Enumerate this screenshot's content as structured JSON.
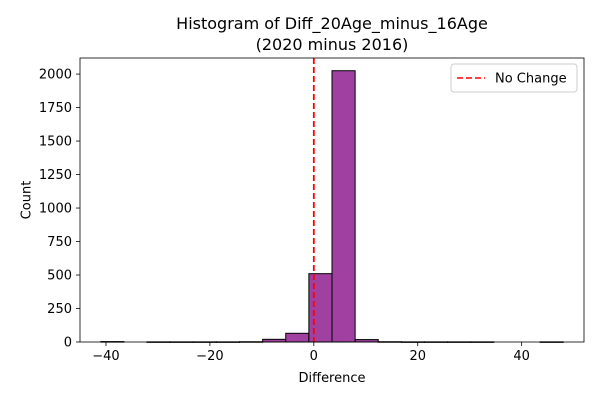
{
  "chart_data": {
    "type": "bar",
    "title": "Histogram of Diff_20Age_minus_16Age",
    "subtitle": "(2020 minus 2016)",
    "xlabel": "Difference",
    "ylabel": "Count",
    "xlim": [
      -45,
      52
    ],
    "ylim": [
      0,
      2120
    ],
    "x_ticks": [
      -40,
      -20,
      0,
      20,
      40
    ],
    "x_tick_labels": [
      "−40",
      "−20",
      "0",
      "20",
      "40"
    ],
    "y_ticks": [
      0,
      250,
      500,
      750,
      1000,
      1250,
      1500,
      1750,
      2000
    ],
    "y_tick_labels": [
      "0",
      "250",
      "500",
      "750",
      "1000",
      "1250",
      "1500",
      "1750",
      "2000"
    ],
    "bin_edges": [
      -41,
      -36.55,
      -32.1,
      -27.65,
      -23.2,
      -18.75,
      -14.3,
      -9.85,
      -5.4,
      -0.95,
      3.5,
      7.95,
      12.4,
      16.85,
      21.3,
      25.75,
      30.2,
      34.65,
      39.1,
      43.55,
      48.0
    ],
    "counts": [
      3,
      0,
      1,
      1,
      1,
      1,
      2,
      20,
      65,
      510,
      2025,
      18,
      2,
      1,
      1,
      1,
      1,
      0,
      0,
      1
    ],
    "bar_color": "#a040a0",
    "edge_color": "#000000",
    "grid": false,
    "reference_line": {
      "x": 0,
      "label": "No Change",
      "color": "#ff0000",
      "style": "dashed"
    },
    "legend": {
      "position": "top-right",
      "entries": [
        "No Change"
      ]
    }
  }
}
